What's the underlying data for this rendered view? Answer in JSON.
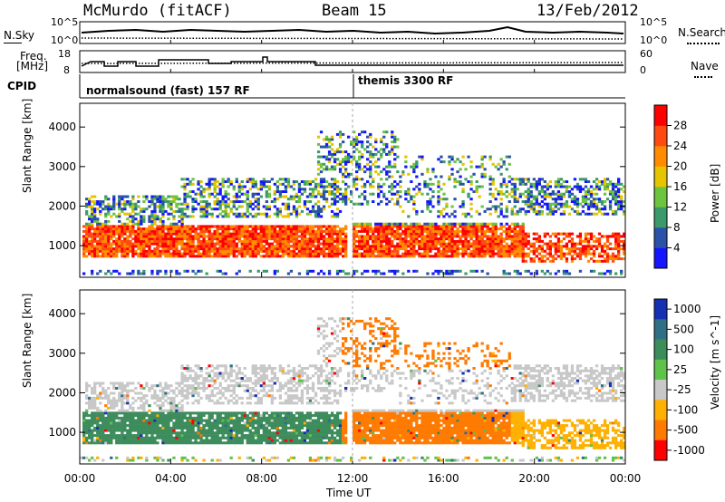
{
  "header": {
    "station": "McMurdo (fitACF)",
    "beam": "Beam 15",
    "date": "13/Feb/2012"
  },
  "status_panels": {
    "nsky_label": "N.Sky",
    "nsky_ticks": [
      "10^5",
      "10^0"
    ],
    "nsearch_label": "N.Search",
    "nsearch_ticks": [
      "10^5",
      "10^0"
    ],
    "freq_label": "Freq.",
    "freq_unit": "[MHz]",
    "freq_ticks": [
      "18",
      "8"
    ],
    "nave_label": "Nave",
    "nave_ticks": [
      "60",
      "0"
    ],
    "cpid_label": "CPID",
    "cpid_segments": [
      {
        "name": "normalsound (fast) 157 RF",
        "start_hour": 0
      },
      {
        "name": "themis 3300 RF",
        "start_hour": 12
      }
    ]
  },
  "chart_data": [
    {
      "type": "heatmap",
      "title": "",
      "xlabel": "Time UT",
      "ylabel": "Slant Range [km]",
      "x_ticks": [
        "00:00",
        "04:00",
        "08:00",
        "12:00",
        "16:00",
        "20:00",
        "00:00"
      ],
      "xlim_hours": [
        0,
        24
      ],
      "ylim": [
        200,
        4600
      ],
      "y_ticks": [
        1000,
        2000,
        3000,
        4000
      ],
      "colorbar": {
        "label": "Power [dB]",
        "ticks": [
          "4",
          "8",
          "12",
          "16",
          "20",
          "24",
          "28"
        ],
        "colors": [
          "#1515ff",
          "#2b52a8",
          "#3c9a6a",
          "#6cc43f",
          "#e6c400",
          "#ff8c00",
          "#ff4a10",
          "#ff0000"
        ]
      }
    },
    {
      "type": "heatmap",
      "title": "",
      "xlabel": "Time UT",
      "ylabel": "Slant Range [km]",
      "x_ticks": [
        "00:00",
        "04:00",
        "08:00",
        "12:00",
        "16:00",
        "20:00",
        "00:00"
      ],
      "xlim_hours": [
        0,
        24
      ],
      "ylim": [
        200,
        4600
      ],
      "y_ticks": [
        1000,
        2000,
        3000,
        4000
      ],
      "colorbar": {
        "label": "Velocity [m s^-1]",
        "ticks": [
          "1000",
          "500",
          "100",
          "25",
          "-25",
          "-100",
          "-500",
          "-1000"
        ],
        "colors": [
          "#1530b0",
          "#2f6f86",
          "#3c8c5c",
          "#5fc24a",
          "#c8c8c8",
          "#ffb000",
          "#ff7a00",
          "#ff0000"
        ]
      }
    }
  ]
}
